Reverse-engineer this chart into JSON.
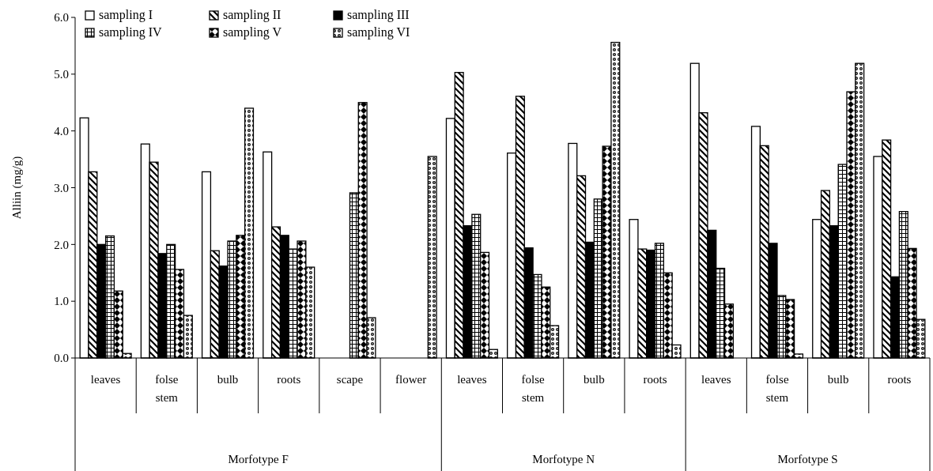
{
  "chart_data": {
    "type": "bar",
    "ylabel": "Alliin (mg/g)",
    "categories": [
      "leaves",
      "folse stem",
      "bulb",
      "roots",
      "scape",
      "flower",
      "leaves",
      "folse stem",
      "bulb",
      "roots",
      "leaves",
      "folse stem",
      "bulb",
      "roots"
    ],
    "series": [
      {
        "name": "sampling I",
        "color": "#ffffff",
        "values": [
          4.23,
          3.77,
          3.28,
          3.63,
          null,
          null,
          4.22,
          3.61,
          3.78,
          2.44,
          5.19,
          4.08,
          2.44,
          3.55
        ]
      },
      {
        "name": "sampling II",
        "color": "#000000",
        "values": [
          3.28,
          3.45,
          1.89,
          2.31,
          null,
          null,
          5.03,
          4.61,
          3.21,
          1.92,
          4.32,
          3.74,
          2.95,
          3.84
        ]
      },
      {
        "name": "sampling III",
        "color": "#000000",
        "values": [
          2.0,
          1.84,
          1.62,
          2.16,
          null,
          null,
          2.33,
          1.94,
          2.04,
          1.9,
          2.25,
          2.02,
          2.33,
          1.43
        ]
      },
      {
        "name": "sampling IV",
        "color": "#000000",
        "values": [
          2.15,
          2.0,
          2.06,
          1.92,
          2.91,
          null,
          2.53,
          1.47,
          2.8,
          2.02,
          1.58,
          1.1,
          3.41,
          2.58
        ]
      },
      {
        "name": "sampling V",
        "color": "#000000",
        "values": [
          1.18,
          1.56,
          2.16,
          2.06,
          4.5,
          null,
          1.86,
          1.25,
          3.73,
          1.5,
          0.95,
          1.03,
          4.69,
          1.93
        ]
      },
      {
        "name": "sampling VI",
        "color": "#000000",
        "values": [
          0.08,
          0.75,
          4.4,
          1.6,
          0.71,
          3.55,
          0.15,
          0.57,
          5.56,
          0.23,
          null,
          0.07,
          5.19,
          0.68
        ]
      }
    ],
    "ylim": [
      0,
      6
    ],
    "yticks": [
      {
        "value": 0,
        "label": "0.0"
      },
      {
        "value": 1,
        "label": "1.0"
      },
      {
        "value": 2,
        "label": "2.0"
      },
      {
        "value": 3,
        "label": "3.0"
      },
      {
        "value": 4,
        "label": "4.0"
      },
      {
        "value": 5,
        "label": "5.0"
      },
      {
        "value": 6,
        "label": "6.0"
      }
    ],
    "annotations": [
      "Morfotype F",
      "Morfotype N",
      "Morfotype S"
    ],
    "legend": "top left",
    "grid": false
  }
}
